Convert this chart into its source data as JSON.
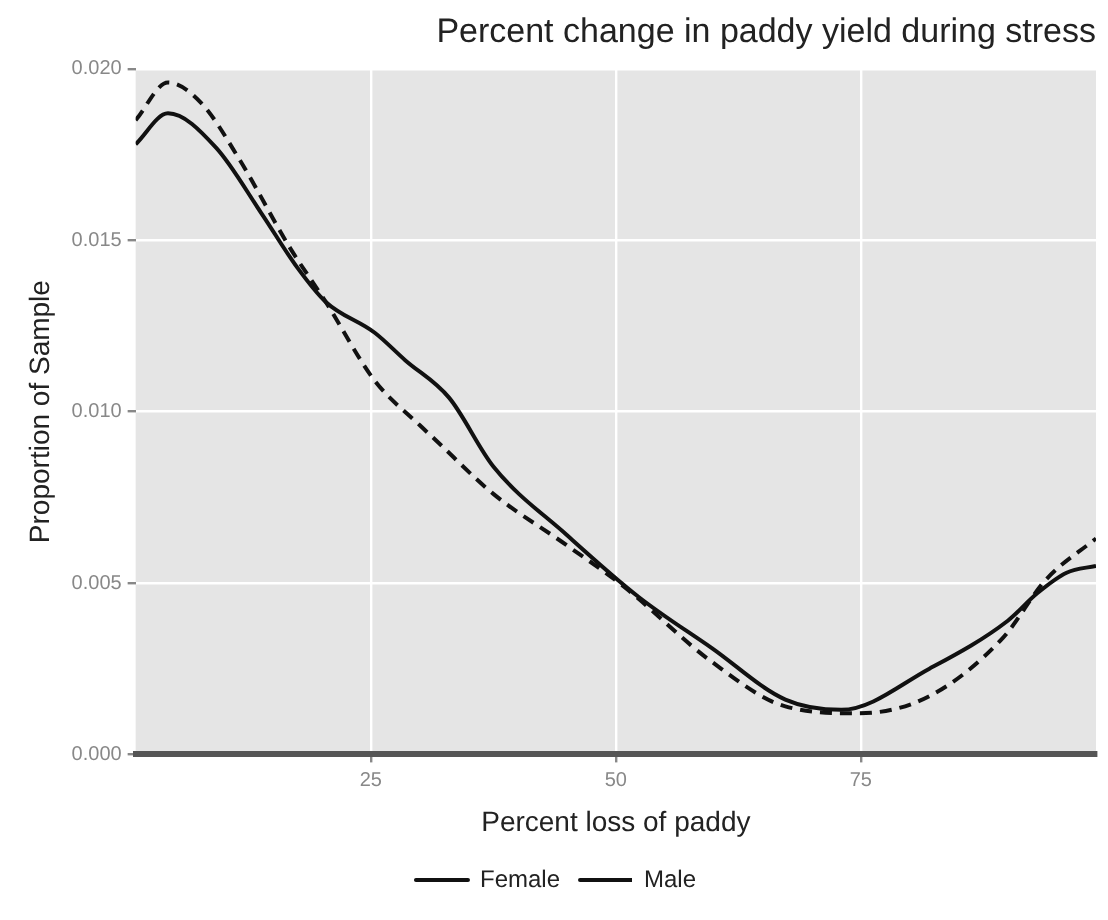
{
  "chart_data": {
    "type": "line",
    "title": "Percent change in paddy yield during stress",
    "xlabel": "Percent loss of paddy",
    "ylabel": "Proportion of Sample",
    "xlim": [
      1,
      99
    ],
    "xticks": [
      25,
      50,
      75
    ],
    "ylim": [
      0,
      0.02
    ],
    "yticks": [
      {
        "value": 0,
        "label": "0.000"
      },
      {
        "value": 0.005,
        "label": "0.005"
      },
      {
        "value": 0.01,
        "label": "0.010"
      },
      {
        "value": 0.015,
        "label": "0.015"
      },
      {
        "value": 0.02,
        "label": "0.020"
      }
    ],
    "grid": true,
    "legend": "bottom",
    "marker": "none",
    "series": [
      {
        "name": "Female",
        "color": "#111111",
        "line_style": "solid",
        "x": [
          1,
          4.3,
          9.2,
          13.8,
          17.5,
          20.4,
          25.4,
          28.5,
          33,
          37.5,
          45,
          52.3,
          59.8,
          67.3,
          73,
          82,
          90,
          93,
          96,
          99
        ],
        "values": [
          0.0178,
          0.0187,
          0.0177,
          0.0158,
          0.0142,
          0.0132,
          0.0123,
          0.0115,
          0.0104,
          0.0084,
          0.0064,
          0.0046,
          0.0031,
          0.0016,
          0.0013,
          0.0025,
          0.0039,
          0.0047,
          0.0053,
          0.0055
        ]
      },
      {
        "name": "Male",
        "color": "#111111",
        "line_style": "dashed",
        "x": [
          1,
          4.3,
          7.7,
          11.5,
          16.7,
          20.4,
          25.4,
          30,
          31.5,
          37.5,
          45,
          50.8,
          59.8,
          67.3,
          74.8,
          82,
          89.5,
          93.9,
          99
        ],
        "values": [
          0.0185,
          0.0196,
          0.019,
          0.0174,
          0.0148,
          0.0132,
          0.0109,
          0.0096,
          0.0092,
          0.0076,
          0.0061,
          0.0049,
          0.0027,
          0.0014,
          0.0012,
          0.0017,
          0.0034,
          0.0051,
          0.0063
        ]
      }
    ]
  }
}
